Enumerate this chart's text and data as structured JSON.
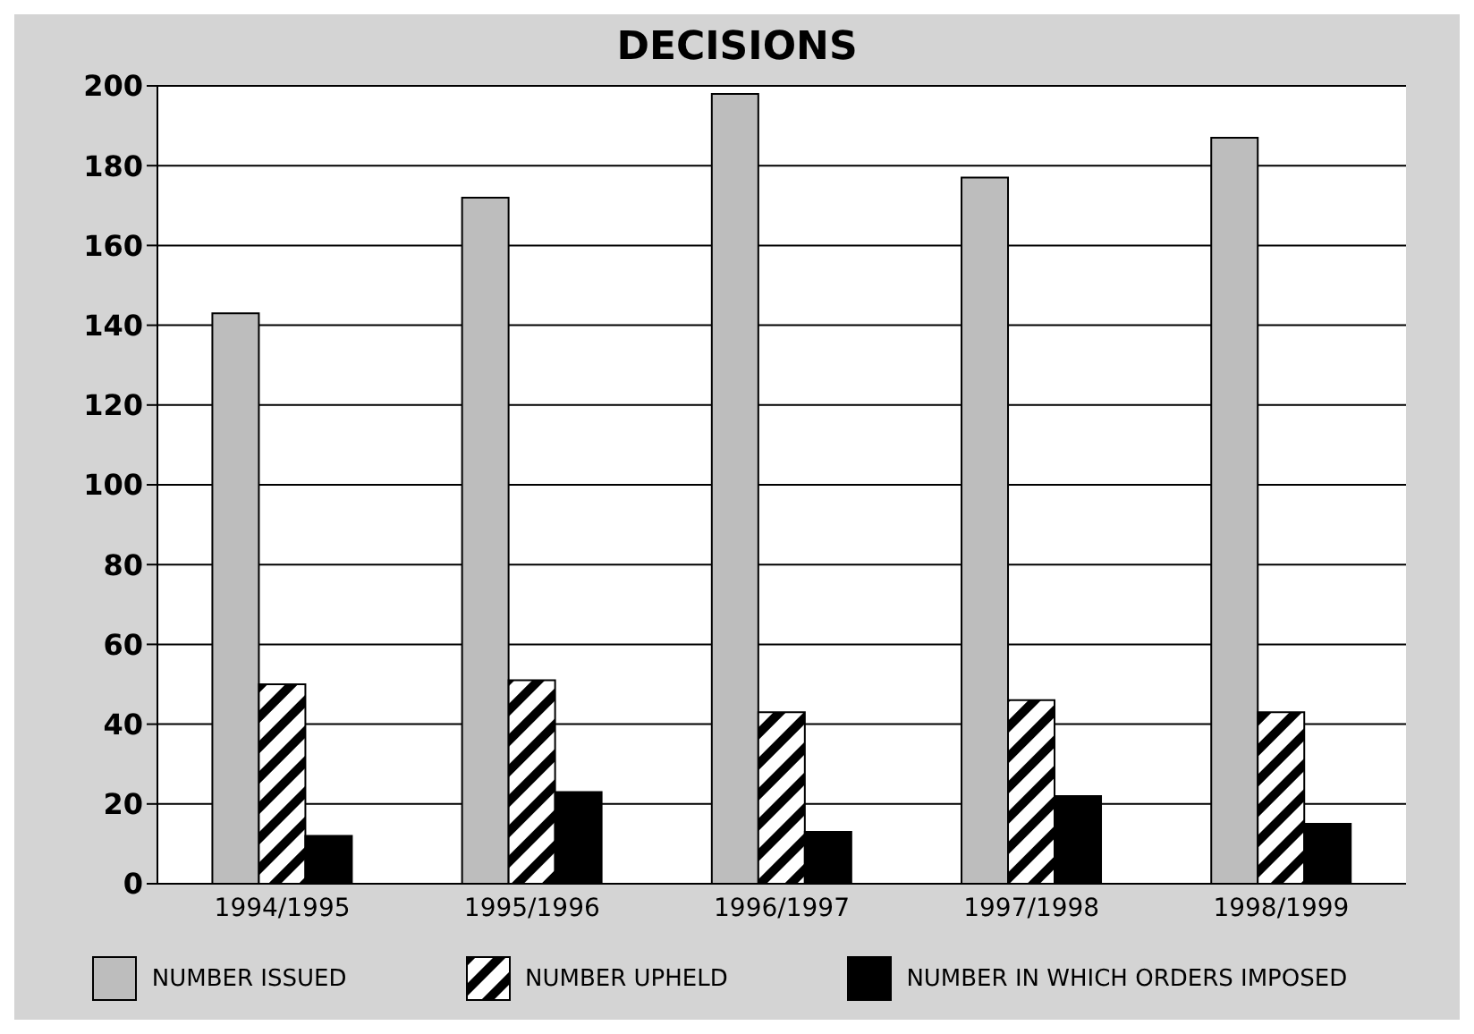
{
  "chart_data": {
    "type": "bar",
    "title": "DECISIONS",
    "categories": [
      "1994/1995",
      "1995/1996",
      "1996/1997",
      "1997/1998",
      "1998/1999"
    ],
    "series": [
      {
        "name": "NUMBER ISSUED",
        "color": "#bdbdbd",
        "values": [
          143,
          172,
          198,
          177,
          187
        ]
      },
      {
        "name": "NUMBER UPHELD",
        "color": "#000000",
        "values": [
          50,
          51,
          43,
          46,
          43
        ]
      },
      {
        "name": "NUMBER IN WHICH ORDERS IMPOSED",
        "color": "#000000",
        "values": [
          12,
          23,
          13,
          22,
          15
        ]
      }
    ],
    "ylim": [
      0,
      200
    ],
    "yticks": [
      0,
      20,
      40,
      60,
      80,
      100,
      120,
      140,
      160,
      180,
      200
    ],
    "grid": "y",
    "legend": "bottom"
  }
}
